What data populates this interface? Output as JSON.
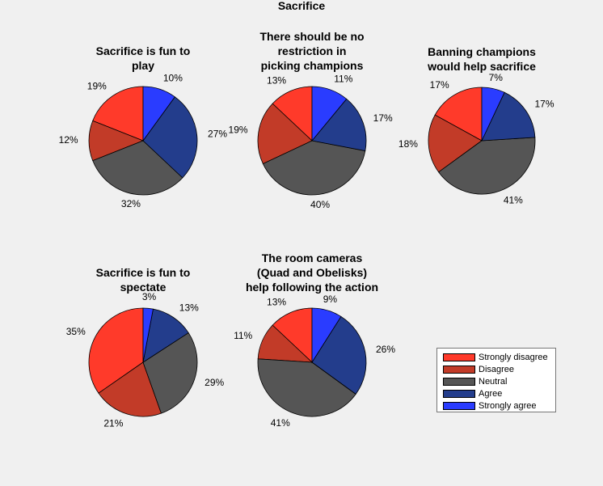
{
  "chart_data": {
    "type": "pie",
    "title": "Sacrifice",
    "categories": [
      "Strongly disagree",
      "Disagree",
      "Neutral",
      "Agree",
      "Strongly agree"
    ],
    "colors": [
      "#ff3a2a",
      "#c23b28",
      "#555555",
      "#233d8c",
      "#2a3cff"
    ],
    "legend_placement": "bottom-right",
    "pies": [
      {
        "title": [
          "Sacrifice is fun to",
          "play"
        ],
        "values": [
          19,
          12,
          32,
          27,
          10
        ],
        "labels": [
          "19%",
          "12%",
          "32%",
          "27%",
          "10%"
        ]
      },
      {
        "title": [
          "There should be no",
          "restriction in",
          "picking champions"
        ],
        "values": [
          13,
          19,
          40,
          17,
          11
        ],
        "labels": [
          "13%",
          "19%",
          "40%",
          "17%",
          "11%"
        ]
      },
      {
        "title": [
          "Banning champions",
          "would help sacrifice"
        ],
        "values": [
          17,
          18,
          41,
          17,
          7
        ],
        "labels": [
          "17%",
          "18%",
          "41%",
          "17%",
          "7%"
        ]
      },
      {
        "title": [
          "Sacrifice is fun to",
          "spectate"
        ],
        "values": [
          35,
          21,
          29,
          13,
          3
        ],
        "labels": [
          "35%",
          "21%",
          "29%",
          "13%",
          "3%"
        ]
      },
      {
        "title": [
          "The room cameras",
          "(Quad and Obelisks)",
          "help following the action"
        ],
        "values": [
          13,
          11,
          41,
          26,
          9
        ],
        "labels": [
          "13%",
          "11%",
          "41%",
          "26%",
          "9%"
        ]
      }
    ]
  }
}
